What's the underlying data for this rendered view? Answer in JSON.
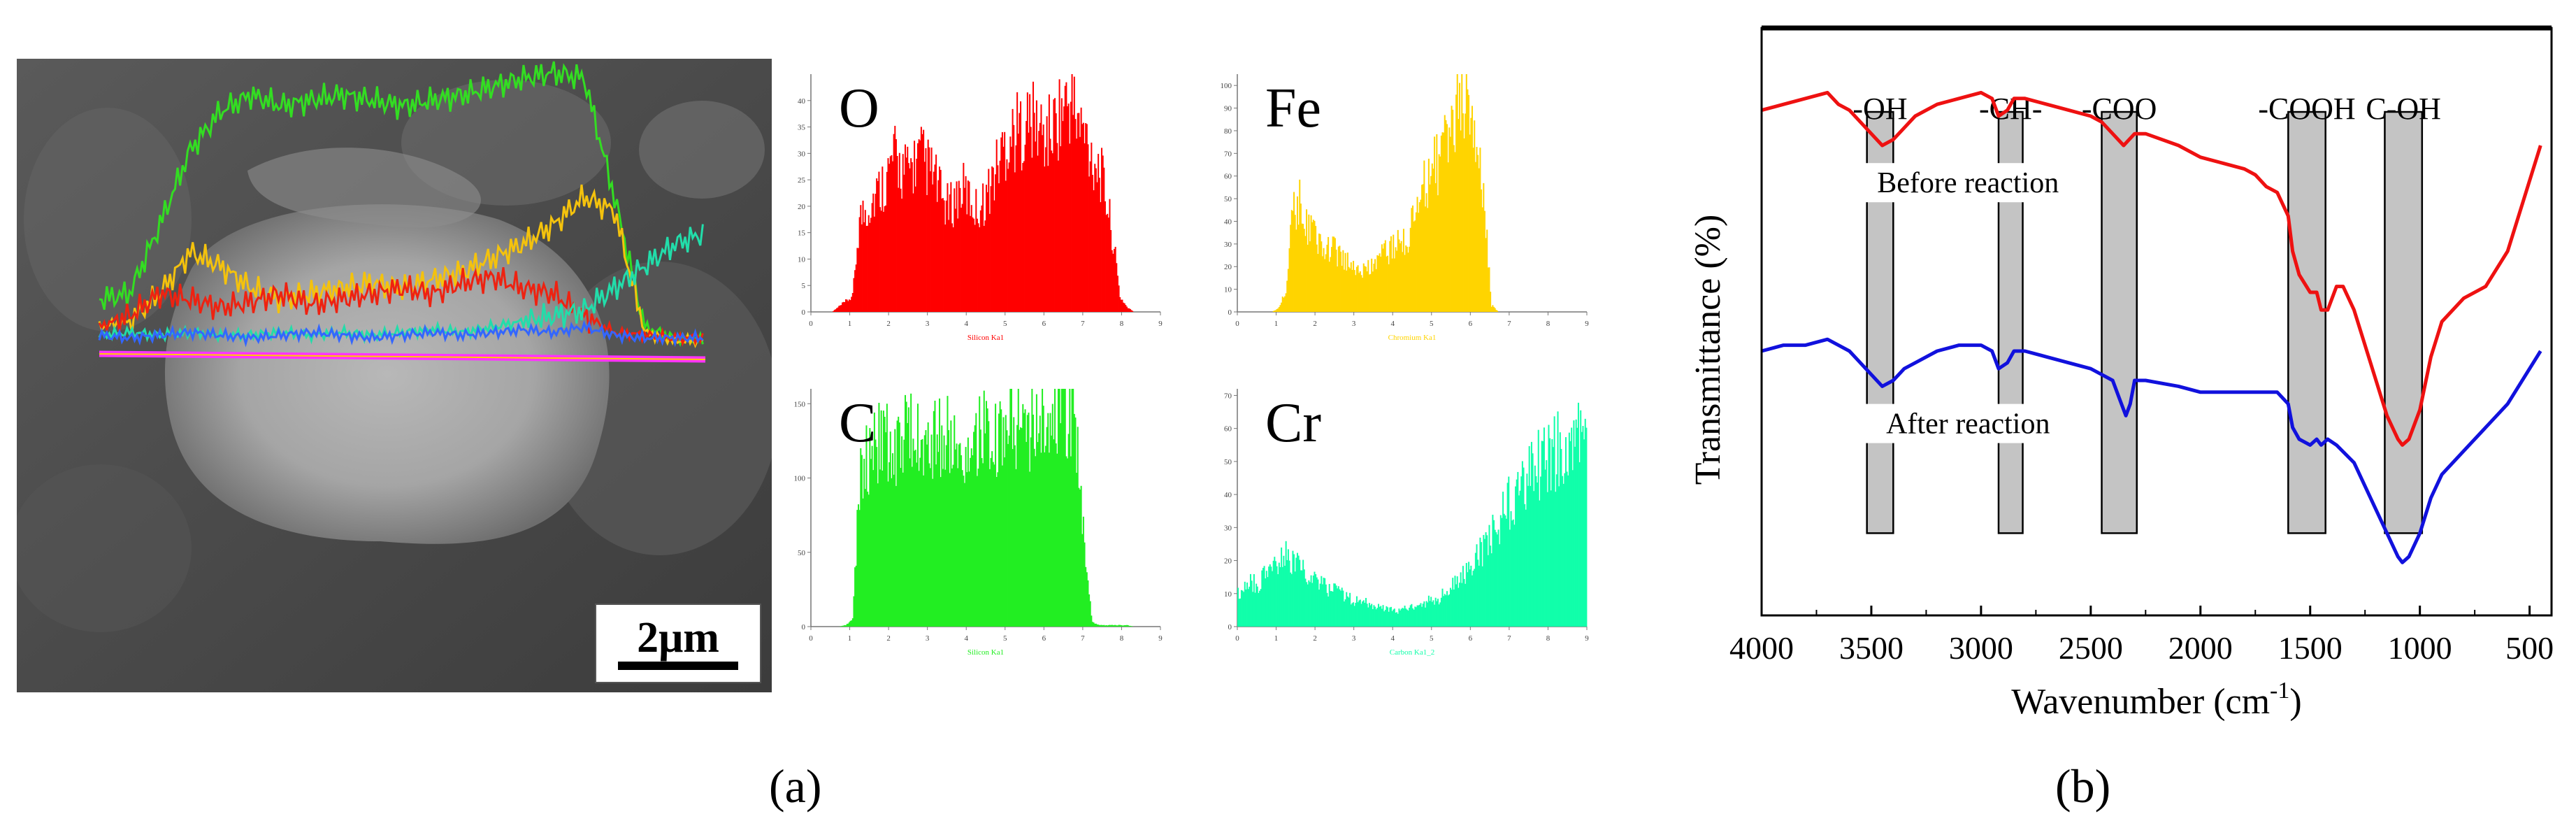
{
  "figure_labels": {
    "a": "(a)",
    "b": "(b)"
  },
  "sem": {
    "scale_bar_label": "2μm",
    "line_profiles": [
      {
        "color": "#33dd22",
        "values": [
          0.18,
          0.2,
          0.45,
          0.72,
          0.86,
          0.92,
          0.88,
          0.9,
          0.92,
          0.9,
          0.88,
          0.9,
          0.92,
          0.95,
          0.98,
          1.0,
          0.98,
          0.55,
          0.08,
          0.04,
          0.03
        ]
      },
      {
        "color": "#f4c20d",
        "values": [
          0.08,
          0.1,
          0.2,
          0.35,
          0.3,
          0.22,
          0.18,
          0.2,
          0.22,
          0.24,
          0.22,
          0.25,
          0.28,
          0.33,
          0.38,
          0.45,
          0.55,
          0.5,
          0.06,
          0.03,
          0.03
        ]
      },
      {
        "color": "#ee2211",
        "values": [
          0.08,
          0.12,
          0.2,
          0.18,
          0.15,
          0.17,
          0.2,
          0.16,
          0.18,
          0.2,
          0.22,
          0.2,
          0.24,
          0.26,
          0.22,
          0.2,
          0.12,
          0.06,
          0.05,
          0.04,
          0.04
        ]
      },
      {
        "color": "#22ddaa",
        "values": [
          0.05,
          0.06,
          0.05,
          0.06,
          0.05,
          0.05,
          0.06,
          0.05,
          0.06,
          0.05,
          0.06,
          0.07,
          0.06,
          0.08,
          0.1,
          0.12,
          0.14,
          0.22,
          0.3,
          0.38,
          0.42
        ]
      },
      {
        "color": "#3366ff",
        "values": [
          0.05,
          0.04,
          0.05,
          0.06,
          0.05,
          0.04,
          0.05,
          0.06,
          0.05,
          0.04,
          0.05,
          0.06,
          0.05,
          0.06,
          0.07,
          0.06,
          0.08,
          0.05,
          0.04,
          0.04,
          0.04
        ]
      }
    ]
  },
  "eds": [
    {
      "element": "O",
      "color": "#ff0000",
      "axis_label": "Silicon Ka1",
      "y_ticks": [
        "0",
        "5",
        "10",
        "15",
        "20",
        "25",
        "30",
        "35",
        "40"
      ],
      "ymax": 45,
      "values": [
        0,
        0,
        0,
        0,
        1,
        2,
        3,
        18,
        20,
        22,
        24,
        26,
        30,
        28,
        27,
        29,
        30,
        28,
        26,
        22,
        20,
        22,
        24,
        22,
        20,
        21,
        24,
        28,
        32,
        34,
        35,
        36,
        37,
        36,
        34,
        35,
        38,
        40,
        41,
        36,
        34,
        30,
        28,
        22,
        14,
        3,
        1,
        0,
        0,
        0,
        0,
        0
      ]
    },
    {
      "element": "Fe",
      "color": "#ffd400",
      "axis_label": "Chromium Ka1",
      "y_ticks": [
        "0",
        "10",
        "20",
        "30",
        "40",
        "50",
        "60",
        "70",
        "80",
        "90",
        "100"
      ],
      "ymax": 105,
      "values": [
        0,
        0,
        0,
        0,
        0,
        0,
        2,
        10,
        45,
        50,
        40,
        35,
        32,
        30,
        28,
        25,
        22,
        20,
        18,
        20,
        22,
        25,
        28,
        30,
        32,
        35,
        45,
        55,
        62,
        68,
        72,
        80,
        88,
        95,
        90,
        80,
        45,
        3,
        0,
        0,
        0,
        0,
        0,
        0,
        0,
        0,
        0,
        0,
        0,
        0,
        0,
        0
      ]
    },
    {
      "element": "C",
      "color": "#22ee22",
      "axis_label": "Silicon Ka1",
      "y_ticks": [
        "0",
        "50",
        "100",
        "150"
      ],
      "ymax": 160,
      "values": [
        0,
        0,
        0,
        0,
        0,
        1,
        5,
        100,
        115,
        120,
        128,
        130,
        125,
        128,
        132,
        130,
        126,
        124,
        128,
        132,
        134,
        130,
        128,
        126,
        130,
        134,
        136,
        132,
        130,
        136,
        140,
        142,
        138,
        135,
        140,
        145,
        150,
        152,
        148,
        120,
        40,
        3,
        1,
        1,
        1,
        1,
        1,
        0,
        0,
        0,
        0,
        0
      ]
    },
    {
      "element": "Cr",
      "color": "#11ffaa",
      "axis_label": "Carbon Ka1_2",
      "y_ticks": [
        "0",
        "10",
        "20",
        "30",
        "40",
        "50",
        "60",
        "70"
      ],
      "ymax": 72,
      "values": [
        10,
        12,
        14,
        13,
        16,
        18,
        20,
        22,
        20,
        18,
        16,
        15,
        14,
        12,
        12,
        10,
        9,
        8,
        8,
        7,
        6,
        6,
        5,
        5,
        5,
        6,
        6,
        7,
        8,
        8,
        10,
        12,
        14,
        16,
        18,
        22,
        25,
        28,
        32,
        36,
        40,
        42,
        45,
        48,
        50,
        52,
        54,
        55,
        56,
        57,
        58,
        58
      ]
    }
  ],
  "eds_x_ticks": [
    "0",
    "1",
    "2",
    "3",
    "4",
    "5",
    "6",
    "7",
    "8",
    "9"
  ],
  "chart_data": {
    "type": "line",
    "title": "",
    "xlabel": "Wavenumber (cm",
    "xlabel_sup": "-1",
    "xlabel_end": ")",
    "ylabel": "Transmittance (%)",
    "xlim": [
      4000,
      400
    ],
    "x_ticks": [
      4000,
      3500,
      3000,
      2500,
      2000,
      1500,
      1000,
      500
    ],
    "ylim": [
      0,
      100
    ],
    "grid": false,
    "series": [
      {
        "name": "Before reaction",
        "color": "#ee1111",
        "x": [
          4000,
          3900,
          3800,
          3700,
          3650,
          3600,
          3550,
          3500,
          3450,
          3400,
          3350,
          3300,
          3200,
          3100,
          3000,
          2950,
          2920,
          2880,
          2850,
          2800,
          2700,
          2600,
          2500,
          2450,
          2400,
          2350,
          2300,
          2250,
          2100,
          2000,
          1900,
          1800,
          1750,
          1700,
          1650,
          1600,
          1580,
          1550,
          1500,
          1470,
          1450,
          1420,
          1380,
          1350,
          1300,
          1250,
          1200,
          1150,
          1100,
          1080,
          1050,
          1000,
          950,
          900,
          800,
          700,
          600,
          500,
          450
        ],
        "y": [
          86,
          87,
          88,
          89,
          87,
          86,
          84,
          82,
          80,
          81,
          83,
          85,
          87,
          88,
          89,
          88,
          85,
          86,
          88,
          88,
          87,
          86,
          85,
          84,
          82,
          80,
          82,
          82,
          80,
          78,
          77,
          76,
          75,
          73,
          72,
          68,
          62,
          58,
          55,
          55,
          52,
          52,
          56,
          56,
          52,
          46,
          40,
          34,
          30,
          29,
          30,
          35,
          44,
          50,
          54,
          56,
          62,
          74,
          80
        ]
      },
      {
        "name": "After reaction",
        "color": "#1111dd",
        "x": [
          4000,
          3900,
          3800,
          3700,
          3650,
          3600,
          3550,
          3500,
          3450,
          3400,
          3350,
          3300,
          3200,
          3100,
          3000,
          2950,
          2920,
          2880,
          2850,
          2800,
          2700,
          2600,
          2500,
          2450,
          2400,
          2370,
          2340,
          2320,
          2300,
          2250,
          2100,
          2000,
          1900,
          1800,
          1700,
          1650,
          1600,
          1580,
          1550,
          1500,
          1470,
          1450,
          1420,
          1380,
          1300,
          1250,
          1200,
          1150,
          1100,
          1080,
          1050,
          1000,
          950,
          900,
          800,
          700,
          600,
          500,
          450
        ],
        "y": [
          45,
          46,
          46,
          47,
          46,
          45,
          43,
          41,
          39,
          40,
          42,
          43,
          45,
          46,
          46,
          45,
          42,
          43,
          45,
          45,
          44,
          43,
          42,
          41,
          40,
          37,
          34,
          36,
          40,
          40,
          39,
          38,
          38,
          38,
          38,
          38,
          36,
          32,
          30,
          29,
          30,
          29,
          30,
          29,
          26,
          22,
          18,
          14,
          10,
          9,
          10,
          14,
          20,
          24,
          28,
          32,
          36,
          42,
          45
        ]
      }
    ],
    "series_labels": [
      {
        "text": "Before reaction",
        "x": 2900,
        "y": 72
      },
      {
        "text": "After reaction",
        "x": 2900,
        "y": 31
      }
    ],
    "bands": [
      {
        "label": "-OH",
        "x0": 3520,
        "x1": 3400
      },
      {
        "label": "-CH-",
        "x0": 2920,
        "x1": 2810
      },
      {
        "label": "-COO",
        "x0": 2450,
        "x1": 2290
      },
      {
        "label": "-COOH",
        "x0": 1600,
        "x1": 1430
      },
      {
        "label": "C-OH",
        "x0": 1160,
        "x1": 990
      }
    ],
    "band_y": [
      14,
      100
    ]
  }
}
